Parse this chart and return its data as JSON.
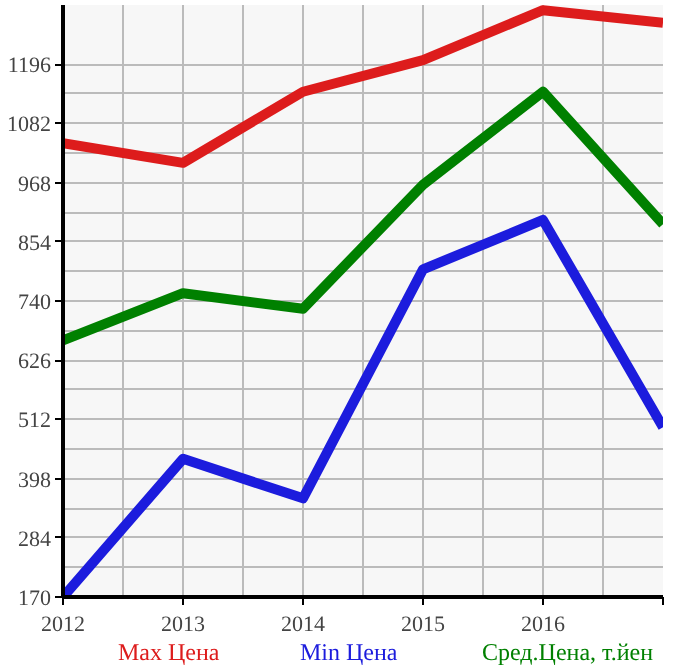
{
  "chart_data": {
    "type": "line",
    "x": [
      2012,
      2013,
      2014,
      2015,
      2016,
      2017
    ],
    "series": [
      {
        "name": "Max Цена",
        "color": "#dd1c1c",
        "values": [
          1044,
          1006,
          1143,
          1204,
          1300,
          1276
        ]
      },
      {
        "name": "Min Цена",
        "color": "#1c1cdd",
        "values": [
          170,
          436,
          360,
          801,
          896,
          497
        ]
      },
      {
        "name": "Сред.Цена, т.йен",
        "color": "#008000",
        "values": [
          664,
          755,
          725,
          964,
          1143,
          888
        ]
      }
    ],
    "xlim": [
      2012,
      2017
    ],
    "xticks": [
      2012,
      2013,
      2014,
      2015,
      2016,
      {
        "value": 2017,
        "label": null
      }
    ],
    "ylim": [
      170,
      1310
    ],
    "yticks": [
      170,
      284,
      398,
      512,
      626,
      740,
      854,
      968,
      1082,
      1196
    ],
    "grid": true,
    "legend": "bottom",
    "marker": "none",
    "line_style": "solid"
  }
}
